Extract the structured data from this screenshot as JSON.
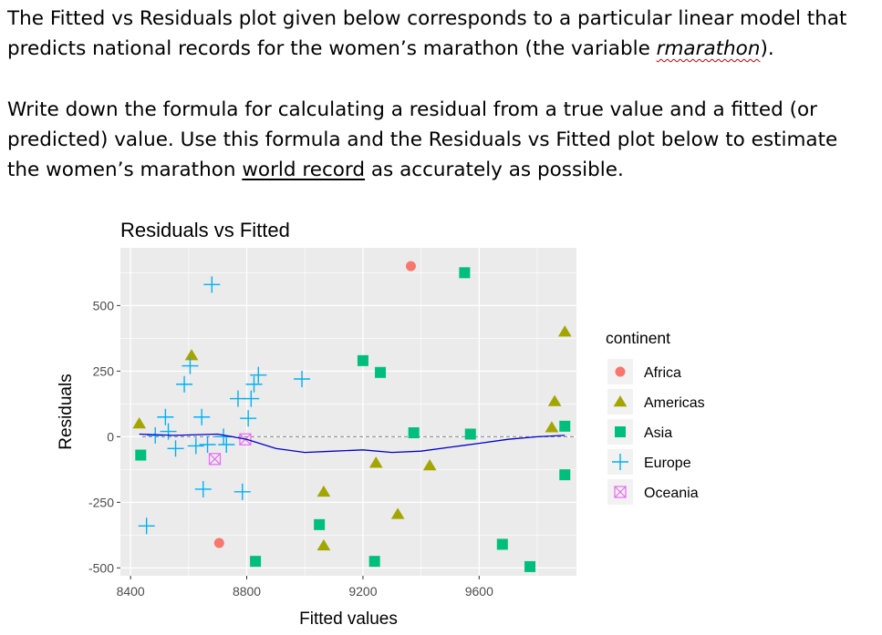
{
  "text": {
    "p1_a": "The Fitted vs Residuals plot given below corresponds to a particular linear model that predicts national records for the women’s marathon (the variable ",
    "p1_var": "rmarathon",
    "p1_b": ").",
    "p2_a": "Write down the formula for calculating a residual from a true value and a fitted (or predicted) value.  Use this formula and the Residuals vs Fitted plot below to estimate the women’s marathon ",
    "p2_link": "world record",
    "p2_b": " as accurately as possible."
  },
  "chart_data": {
    "type": "scatter",
    "title": "Residuals vs Fitted",
    "xlabel": "Fitted values",
    "ylabel": "Residuals",
    "xlim": [
      8365,
      9935
    ],
    "ylim": [
      -530,
      720
    ],
    "xticks": [
      8400,
      8800,
      9200,
      9600
    ],
    "yticks": [
      -500,
      -250,
      0,
      250,
      500
    ],
    "grid": true,
    "legend_title": "continent",
    "legend_position": "right",
    "reference_line": 0,
    "series": [
      {
        "name": "Africa",
        "shape": "circle",
        "color": "#F8766D",
        "points": [
          [
            9365,
            650
          ],
          [
            8705,
            -405
          ]
        ]
      },
      {
        "name": "Americas",
        "shape": "triangle",
        "color": "#A3A500",
        "points": [
          [
            8430,
            50
          ],
          [
            8610,
            310
          ],
          [
            9065,
            -210
          ],
          [
            9065,
            -415
          ],
          [
            9245,
            -100
          ],
          [
            9320,
            -295
          ],
          [
            9430,
            -110
          ],
          [
            9850,
            35
          ],
          [
            9860,
            135
          ],
          [
            9895,
            400
          ]
        ]
      },
      {
        "name": "Asia",
        "shape": "square",
        "color": "#00BF7D",
        "points": [
          [
            8435,
            -70
          ],
          [
            8830,
            -475
          ],
          [
            9050,
            -335
          ],
          [
            9200,
            290
          ],
          [
            9260,
            245
          ],
          [
            9240,
            -475
          ],
          [
            9375,
            15
          ],
          [
            9550,
            625
          ],
          [
            9570,
            10
          ],
          [
            9680,
            -410
          ],
          [
            9775,
            -495
          ],
          [
            9895,
            -145
          ],
          [
            9895,
            40
          ]
        ]
      },
      {
        "name": "Europe",
        "shape": "plus",
        "color": "#00B0F6",
        "points": [
          [
            8455,
            -340
          ],
          [
            8485,
            5
          ],
          [
            8520,
            75
          ],
          [
            8530,
            20
          ],
          [
            8555,
            -45
          ],
          [
            8585,
            200
          ],
          [
            8605,
            270
          ],
          [
            8625,
            -35
          ],
          [
            8645,
            75
          ],
          [
            8650,
            -200
          ],
          [
            8665,
            -30
          ],
          [
            8680,
            580
          ],
          [
            8720,
            0
          ],
          [
            8730,
            -30
          ],
          [
            8770,
            145
          ],
          [
            8785,
            -210
          ],
          [
            8805,
            70
          ],
          [
            8815,
            145
          ],
          [
            8825,
            200
          ],
          [
            8840,
            235
          ],
          [
            8990,
            220
          ]
        ]
      },
      {
        "name": "Oceania",
        "shape": "boxx",
        "color": "#E76BF3",
        "points": [
          [
            8690,
            -85
          ],
          [
            8795,
            -10
          ]
        ]
      }
    ],
    "smooth_line": {
      "color": "#0000CC",
      "points": [
        [
          8430,
          10
        ],
        [
          8550,
          5
        ],
        [
          8700,
          10
        ],
        [
          8800,
          -10
        ],
        [
          8900,
          -45
        ],
        [
          9000,
          -60
        ],
        [
          9100,
          -55
        ],
        [
          9200,
          -50
        ],
        [
          9300,
          -60
        ],
        [
          9400,
          -55
        ],
        [
          9500,
          -40
        ],
        [
          9600,
          -25
        ],
        [
          9700,
          -10
        ],
        [
          9800,
          0
        ],
        [
          9895,
          5
        ]
      ]
    }
  }
}
